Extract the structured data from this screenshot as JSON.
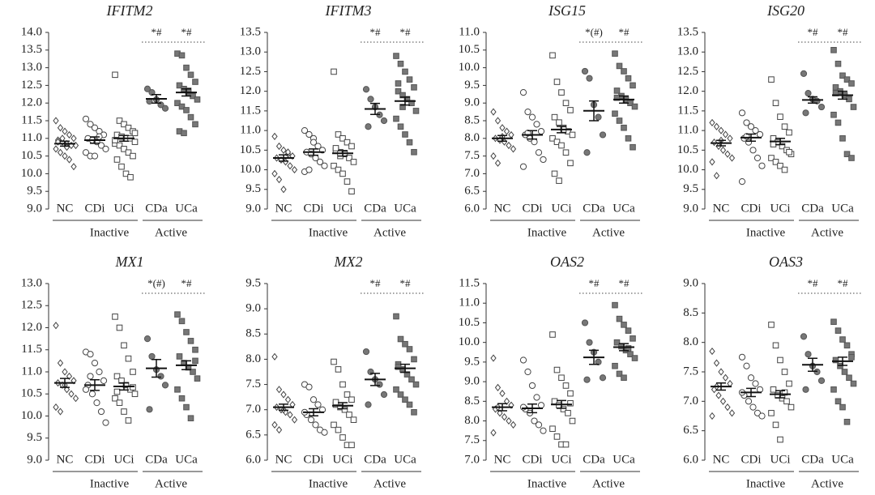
{
  "chart_data": [
    {
      "type": "dot",
      "title": "IFITM2",
      "categories": [
        "NC",
        "CDi",
        "UCi",
        "CDa",
        "UCa"
      ],
      "group_labels": [
        "Inactive",
        "Active"
      ],
      "annotations": [
        "*#",
        "*#"
      ],
      "ylim": [
        9,
        14
      ],
      "yticks": [
        {
          "value": 9,
          "label": "9.0"
        },
        9.5,
        {
          "value": 10,
          "label": "10.0"
        },
        10.5,
        {
          "value": 11,
          "label": "11.0"
        },
        11.5,
        {
          "value": 12,
          "label": "12.0"
        },
        12.5,
        {
          "value": 13,
          "label": "13.0"
        },
        13.5,
        {
          "value": 14,
          "label": "14.0"
        }
      ],
      "markers": [
        "diamond-open",
        "circle-open",
        "square-open",
        "circle-filled",
        "square-filled"
      ],
      "color": "#777777",
      "points": [
        [
          11.5,
          11.3,
          11.2,
          11.1,
          11.0,
          10.95,
          10.9,
          10.85,
          10.8,
          10.8,
          10.7,
          10.6,
          10.5,
          10.4,
          10.2,
          10.9,
          11.0,
          10.75
        ],
        [
          11.55,
          11.4,
          11.3,
          11.2,
          11.1,
          11.0,
          10.95,
          10.9,
          10.8,
          10.7,
          10.6,
          10.5,
          10.5,
          11.05
        ],
        [
          12.8,
          11.5,
          11.4,
          11.3,
          11.2,
          11.1,
          11.05,
          11.0,
          11.0,
          10.9,
          10.85,
          10.8,
          10.7,
          10.6,
          10.5,
          10.4,
          10.2,
          10.0,
          9.9,
          11.15,
          10.95
        ],
        [
          12.4,
          12.3,
          12.1,
          11.95,
          11.85,
          12.05
        ],
        [
          13.4,
          13.35,
          13.0,
          12.8,
          12.6,
          12.5,
          12.4,
          12.3,
          12.2,
          12.1,
          12.0,
          11.9,
          11.8,
          11.6,
          11.4,
          11.2,
          11.15,
          12.35
        ]
      ],
      "means": [
        10.85,
        10.95,
        11.0,
        12.12,
        12.3
      ],
      "sems": [
        0.07,
        0.09,
        0.08,
        0.12,
        0.1
      ]
    },
    {
      "type": "dot",
      "title": "IFITM3",
      "categories": [
        "NC",
        "CDi",
        "UCi",
        "CDa",
        "UCa"
      ],
      "group_labels": [
        "Inactive",
        "Active"
      ],
      "annotations": [
        "*#",
        "*#"
      ],
      "ylim": [
        9,
        13.5
      ],
      "yticks": [
        {
          "value": 9,
          "label": "9.0"
        },
        9.5,
        {
          "value": 10,
          "label": "10.0"
        },
        10.5,
        {
          "value": 11,
          "label": "11.0"
        },
        11.5,
        {
          "value": 12,
          "label": "12.0"
        },
        12.5,
        {
          "value": 13,
          "label": "13.0"
        },
        13.5
      ],
      "markers": [
        "diamond-open",
        "circle-open",
        "square-open",
        "circle-filled",
        "square-filled"
      ],
      "color": "#777777",
      "points": [
        [
          10.85,
          10.6,
          10.5,
          10.4,
          10.35,
          10.3,
          10.25,
          10.2,
          10.1,
          10.0,
          9.9,
          9.75,
          9.5,
          10.45
        ],
        [
          11.0,
          10.9,
          10.8,
          10.6,
          10.5,
          10.45,
          10.4,
          10.3,
          10.2,
          10.1,
          9.95,
          10.0,
          10.7
        ],
        [
          12.5,
          10.9,
          10.8,
          10.7,
          10.6,
          10.5,
          10.45,
          10.4,
          10.3,
          10.2,
          10.1,
          10.0,
          9.9,
          9.7,
          9.45,
          10.55,
          10.35
        ],
        [
          12.05,
          11.8,
          11.6,
          11.4,
          11.25,
          11.1
        ],
        [
          12.9,
          12.7,
          12.5,
          12.3,
          12.1,
          12.0,
          11.9,
          11.8,
          11.7,
          11.5,
          11.3,
          11.1,
          10.9,
          10.7,
          10.45,
          12.2,
          11.6
        ]
      ],
      "means": [
        10.3,
        10.45,
        10.42,
        11.55,
        11.75
      ],
      "sems": [
        0.08,
        0.08,
        0.07,
        0.14,
        0.1
      ]
    },
    {
      "type": "dot",
      "title": "ISG15",
      "categories": [
        "NC",
        "CDi",
        "UCi",
        "CDa",
        "UCa"
      ],
      "group_labels": [
        "Inactive",
        "Active"
      ],
      "annotations": [
        "*(#)",
        "*#"
      ],
      "ylim": [
        6,
        11
      ],
      "yticks": [
        {
          "value": 6,
          "label": "6.0"
        },
        6.5,
        {
          "value": 7,
          "label": "7.0"
        },
        7.5,
        {
          "value": 8,
          "label": "8.0"
        },
        8.5,
        {
          "value": 9,
          "label": "9.0"
        },
        9.5,
        {
          "value": 10,
          "label": "10.0"
        },
        10.5,
        {
          "value": 11,
          "label": "11.0"
        }
      ],
      "markers": [
        "diamond-open",
        "circle-open",
        "square-open",
        "circle-filled",
        "square-filled"
      ],
      "color": "#777777",
      "points": [
        [
          8.75,
          8.5,
          8.3,
          8.2,
          8.1,
          8.0,
          7.95,
          7.9,
          7.8,
          7.7,
          7.5,
          7.3,
          8.05
        ],
        [
          9.3,
          8.75,
          8.6,
          8.4,
          8.2,
          8.1,
          8.0,
          7.9,
          7.6,
          7.4,
          7.2,
          8.15
        ],
        [
          10.35,
          9.6,
          9.3,
          9.0,
          8.8,
          8.6,
          8.45,
          8.3,
          8.2,
          8.1,
          8.0,
          7.9,
          7.8,
          7.6,
          7.3,
          7.0,
          6.8,
          8.25
        ],
        [
          9.9,
          9.7,
          8.95,
          8.6,
          8.1,
          7.6
        ],
        [
          10.4,
          10.05,
          9.9,
          9.7,
          9.5,
          9.35,
          9.2,
          9.1,
          9.0,
          8.9,
          8.7,
          8.5,
          8.3,
          8.0,
          7.75,
          9.15
        ]
      ],
      "means": [
        8.0,
        8.1,
        8.25,
        8.78,
        9.1
      ],
      "sems": [
        0.08,
        0.12,
        0.09,
        0.28,
        0.1
      ]
    },
    {
      "type": "dot",
      "title": "ISG20",
      "categories": [
        "NC",
        "CDi",
        "UCi",
        "CDa",
        "UCa"
      ],
      "group_labels": [
        "Inactive",
        "Active"
      ],
      "annotations": [
        "*#",
        "*#"
      ],
      "ylim": [
        9,
        13.5
      ],
      "yticks": [
        {
          "value": 9,
          "label": "9.0"
        },
        9.5,
        {
          "value": 10,
          "label": "10.0"
        },
        10.5,
        {
          "value": 11,
          "label": "11.0"
        },
        11.5,
        {
          "value": 12,
          "label": "12.0"
        },
        12.5,
        {
          "value": 13,
          "label": "13.0"
        },
        13.5
      ],
      "markers": [
        "diamond-open",
        "circle-open",
        "square-open",
        "circle-filled",
        "square-filled"
      ],
      "color": "#777777",
      "points": [
        [
          11.2,
          11.1,
          11.0,
          10.9,
          10.8,
          10.7,
          10.6,
          10.5,
          10.4,
          10.3,
          10.2,
          9.85,
          10.75
        ],
        [
          11.45,
          11.2,
          11.1,
          11.0,
          10.9,
          10.8,
          10.7,
          10.5,
          10.3,
          10.1,
          9.7,
          10.85
        ],
        [
          12.3,
          11.7,
          11.35,
          11.1,
          10.95,
          10.8,
          10.7,
          10.6,
          10.5,
          10.4,
          10.3,
          10.2,
          10.1,
          10.0,
          10.45,
          10.65
        ],
        [
          12.45,
          11.95,
          11.8,
          11.75,
          11.6,
          11.45
        ],
        [
          13.05,
          12.7,
          12.4,
          12.3,
          12.2,
          12.1,
          12.0,
          11.9,
          11.8,
          11.6,
          11.4,
          11.2,
          10.8,
          10.4,
          10.3,
          11.95
        ]
      ],
      "means": [
        10.68,
        10.82,
        10.72,
        11.78,
        11.9
      ],
      "sems": [
        0.07,
        0.09,
        0.08,
        0.08,
        0.1
      ]
    },
    {
      "type": "dot",
      "title": "MX1",
      "categories": [
        "NC",
        "CDi",
        "UCi",
        "CDa",
        "UCa"
      ],
      "group_labels": [
        "Inactive",
        "Active"
      ],
      "annotations": [
        "*(#)",
        "*#"
      ],
      "ylim": [
        9,
        13
      ],
      "yticks": [
        {
          "value": 9,
          "label": "9.0"
        },
        9.5,
        {
          "value": 10,
          "label": "10.0"
        },
        10.5,
        {
          "value": 11,
          "label": "11.0"
        },
        11.5,
        {
          "value": 12,
          "label": "12.0"
        },
        12.5,
        {
          "value": 13,
          "label": "13.0"
        }
      ],
      "markers": [
        "diamond-open",
        "circle-open",
        "square-open",
        "circle-filled",
        "square-filled"
      ],
      "color": "#777777",
      "points": [
        [
          12.05,
          11.2,
          11.0,
          10.9,
          10.8,
          10.75,
          10.7,
          10.6,
          10.5,
          10.4,
          10.2,
          10.1,
          10.7
        ],
        [
          11.45,
          11.4,
          11.2,
          11.0,
          10.8,
          10.7,
          10.5,
          10.3,
          10.1,
          9.85,
          10.6,
          10.9
        ],
        [
          12.25,
          12.0,
          11.6,
          11.3,
          11.0,
          10.9,
          10.8,
          10.7,
          10.6,
          10.5,
          10.4,
          10.3,
          10.1,
          9.9,
          10.65,
          10.55
        ],
        [
          11.75,
          11.35,
          11.05,
          10.9,
          10.7,
          10.15
        ],
        [
          12.3,
          12.15,
          11.9,
          11.7,
          11.5,
          11.35,
          11.2,
          11.1,
          11.0,
          10.85,
          10.6,
          10.4,
          10.2,
          9.95,
          11.25
        ]
      ],
      "means": [
        10.75,
        10.7,
        10.67,
        11.08,
        11.15
      ],
      "sems": [
        0.1,
        0.12,
        0.08,
        0.2,
        0.1
      ]
    },
    {
      "type": "dot",
      "title": "MX2",
      "categories": [
        "NC",
        "CDi",
        "UCi",
        "CDa",
        "UCa"
      ],
      "group_labels": [
        "Inactive",
        "Active"
      ],
      "annotations": [
        "*#",
        "*#"
      ],
      "ylim": [
        6,
        9.5
      ],
      "yticks": [
        {
          "value": 6,
          "label": "6.0"
        },
        6.5,
        {
          "value": 7,
          "label": "7.0"
        },
        7.5,
        {
          "value": 8,
          "label": "8.0"
        },
        8.5,
        {
          "value": 9,
          "label": "9.0"
        },
        9.5
      ],
      "markers": [
        "diamond-open",
        "circle-open",
        "square-open",
        "circle-filled",
        "square-filled"
      ],
      "color": "#777777",
      "points": [
        [
          8.05,
          7.4,
          7.3,
          7.2,
          7.1,
          7.05,
          7.0,
          6.95,
          6.9,
          6.8,
          6.7,
          6.6,
          7.0
        ],
        [
          7.5,
          7.45,
          7.2,
          7.1,
          7.0,
          6.9,
          6.8,
          6.7,
          6.6,
          6.55,
          6.95
        ],
        [
          7.95,
          7.8,
          7.5,
          7.3,
          7.2,
          7.1,
          7.05,
          7.0,
          6.9,
          6.8,
          6.7,
          6.6,
          6.45,
          6.3,
          6.3,
          7.15
        ],
        [
          8.15,
          7.75,
          7.6,
          7.5,
          7.3,
          7.1
        ],
        [
          8.85,
          8.4,
          8.3,
          8.2,
          8.0,
          7.9,
          7.8,
          7.7,
          7.6,
          7.5,
          7.4,
          7.3,
          7.2,
          7.1,
          6.95,
          7.85
        ]
      ],
      "means": [
        7.05,
        6.95,
        7.08,
        7.6,
        7.82
      ],
      "sems": [
        0.06,
        0.07,
        0.06,
        0.12,
        0.08
      ]
    },
    {
      "type": "dot",
      "title": "OAS2",
      "categories": [
        "NC",
        "CDi",
        "UCi",
        "CDa",
        "UCa"
      ],
      "group_labels": [
        "Inactive",
        "Active"
      ],
      "annotations": [
        "*#",
        "*#"
      ],
      "ylim": [
        7,
        11.5
      ],
      "yticks": [
        {
          "value": 7,
          "label": "7.0"
        },
        7.5,
        {
          "value": 8,
          "label": "8.0"
        },
        8.5,
        {
          "value": 9,
          "label": "9.0"
        },
        9.5,
        {
          "value": 10,
          "label": "10.0"
        },
        10.5,
        {
          "value": 11,
          "label": "11.0"
        },
        11.5
      ],
      "markers": [
        "diamond-open",
        "circle-open",
        "square-open",
        "circle-filled",
        "square-filled"
      ],
      "color": "#777777",
      "points": [
        [
          9.6,
          8.85,
          8.7,
          8.5,
          8.4,
          8.3,
          8.2,
          8.1,
          8.0,
          7.9,
          7.7,
          8.35
        ],
        [
          9.55,
          9.25,
          8.9,
          8.6,
          8.4,
          8.3,
          8.2,
          8.0,
          7.9,
          7.75,
          8.35
        ],
        [
          10.2,
          9.3,
          9.1,
          8.9,
          8.7,
          8.5,
          8.4,
          8.3,
          8.2,
          8.0,
          7.8,
          7.6,
          7.4,
          7.4,
          8.45
        ],
        [
          10.5,
          10.0,
          9.75,
          9.5,
          9.1,
          9.05
        ],
        [
          10.95,
          10.6,
          10.45,
          10.3,
          10.1,
          10.0,
          9.9,
          9.8,
          9.7,
          9.6,
          9.4,
          9.2,
          9.1,
          9.85
        ]
      ],
      "means": [
        8.35,
        8.32,
        8.42,
        9.62,
        9.88
      ],
      "sems": [
        0.09,
        0.11,
        0.1,
        0.18,
        0.09
      ]
    },
    {
      "type": "dot",
      "title": "OAS3",
      "categories": [
        "NC",
        "CDi",
        "UCi",
        "CDa",
        "UCa"
      ],
      "group_labels": [
        "Inactive",
        "Active"
      ],
      "annotations": [
        "*#",
        "*#"
      ],
      "ylim": [
        6,
        9
      ],
      "yticks": [
        {
          "value": 6,
          "label": "6.0"
        },
        6.5,
        {
          "value": 7,
          "label": "7.0"
        },
        7.5,
        {
          "value": 8,
          "label": "8.0"
        },
        8.5,
        {
          "value": 9,
          "label": "9.0"
        }
      ],
      "markers": [
        "diamond-open",
        "circle-open",
        "square-open",
        "circle-filled",
        "square-filled"
      ],
      "color": "#777777",
      "points": [
        [
          7.85,
          7.65,
          7.5,
          7.4,
          7.3,
          7.2,
          7.1,
          7.0,
          6.9,
          6.8,
          6.75,
          7.25
        ],
        [
          7.75,
          7.6,
          7.4,
          7.3,
          7.2,
          7.1,
          7.0,
          6.9,
          6.8,
          6.75,
          7.15
        ],
        [
          8.3,
          7.95,
          7.7,
          7.5,
          7.3,
          7.2,
          7.1,
          7.05,
          7.0,
          6.9,
          6.8,
          6.6,
          6.35,
          7.15
        ],
        [
          8.1,
          7.8,
          7.6,
          7.5,
          7.35,
          7.2
        ],
        [
          8.35,
          8.2,
          8.05,
          7.95,
          7.8,
          7.7,
          7.6,
          7.5,
          7.4,
          7.3,
          7.2,
          7.0,
          6.9,
          6.65,
          7.75
        ]
      ],
      "means": [
        7.25,
        7.15,
        7.12,
        7.62,
        7.68
      ],
      "sems": [
        0.06,
        0.07,
        0.06,
        0.11,
        0.07
      ]
    }
  ]
}
